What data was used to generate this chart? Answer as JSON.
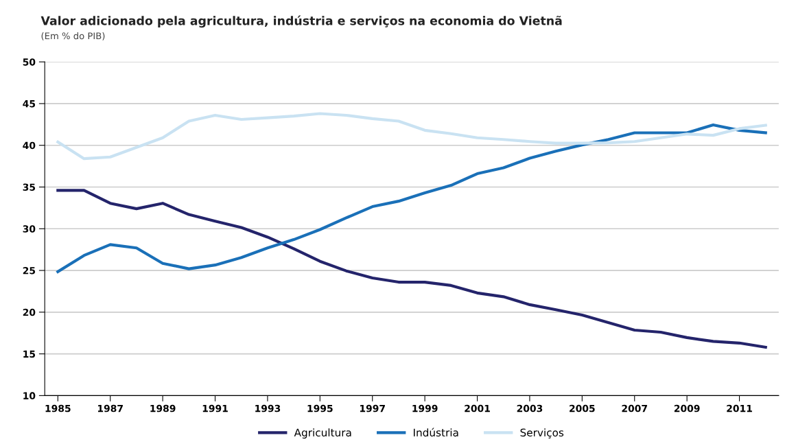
{
  "chart_data": {
    "type": "line",
    "title": "Valor adicionado pela agricultura, indústria e serviços na economia do Vietnã",
    "subtitle": "(Em % do PIB)",
    "x": [
      1985,
      1986,
      1987,
      1988,
      1989,
      1990,
      1991,
      1992,
      1993,
      1994,
      1995,
      1996,
      1997,
      1998,
      1999,
      2000,
      2001,
      2002,
      2003,
      2004,
      2005,
      2006,
      2007,
      2008,
      2009,
      2010,
      2011,
      2012
    ],
    "series": [
      {
        "name": "Agricultura",
        "color": "#24246b",
        "values": [
          34.6,
          34.6,
          33.05,
          32.4,
          33.05,
          31.7,
          30.9,
          30.15,
          29.0,
          27.6,
          26.1,
          24.95,
          24.1,
          23.6,
          23.6,
          23.2,
          22.3,
          21.85,
          20.9,
          20.3,
          19.65,
          18.75,
          17.85,
          17.6,
          16.95,
          16.5,
          16.3,
          15.8
        ]
      },
      {
        "name": "Indústria",
        "color": "#1a70b8",
        "values": [
          24.85,
          26.8,
          28.1,
          27.7,
          25.85,
          25.2,
          25.65,
          26.55,
          27.7,
          28.7,
          29.9,
          31.3,
          32.65,
          33.3,
          34.3,
          35.2,
          36.6,
          37.3,
          38.45,
          39.3,
          40.05,
          40.7,
          41.5,
          41.5,
          41.5,
          42.45,
          41.8,
          41.5
        ]
      },
      {
        "name": "Serviços",
        "color": "#c9e2f2",
        "values": [
          40.4,
          38.4,
          38.6,
          39.75,
          40.9,
          42.9,
          43.6,
          43.1,
          43.3,
          43.5,
          43.8,
          43.6,
          43.2,
          42.9,
          41.8,
          41.4,
          40.9,
          40.7,
          40.45,
          40.25,
          40.25,
          40.3,
          40.45,
          40.9,
          41.35,
          41.2,
          42.0,
          42.4
        ]
      }
    ],
    "xlim": [
      1984.5,
      2012.5
    ],
    "xticks": [
      1985,
      1987,
      1989,
      1991,
      1993,
      1995,
      1997,
      1999,
      2001,
      2003,
      2005,
      2007,
      2009,
      2011
    ],
    "ylim": [
      10,
      50
    ],
    "yticks": [
      10,
      15,
      20,
      25,
      30,
      35,
      40,
      45,
      50
    ],
    "grid": "y",
    "legend": "bottom",
    "marker": "none",
    "line_style": "solid"
  }
}
